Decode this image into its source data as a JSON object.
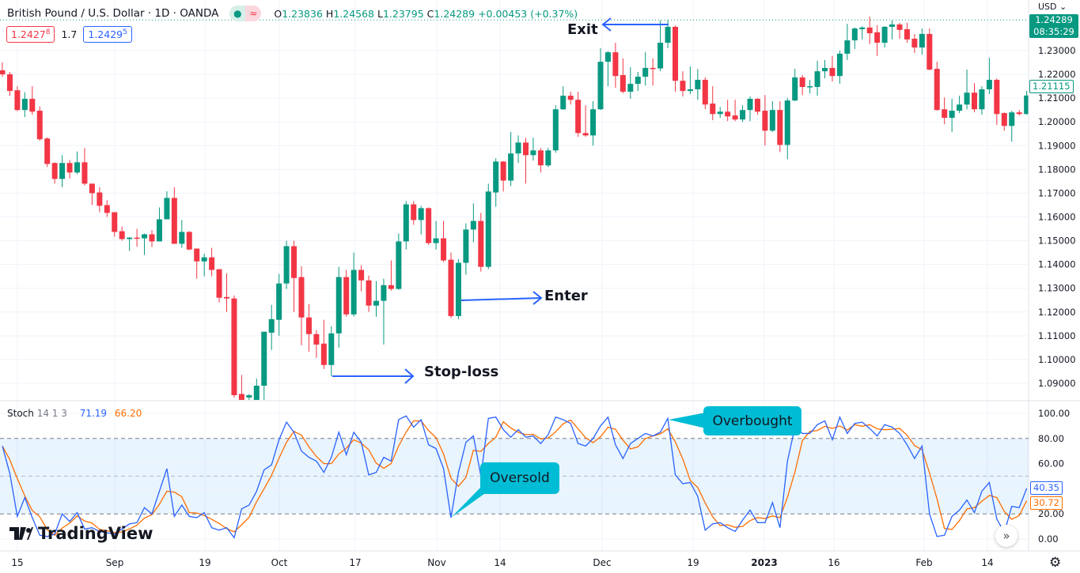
{
  "header": {
    "title": "British Pound / U.S. Dollar · 1D · OANDA",
    "badge_market_icon": "dot-icon",
    "badge_replay_icon": "approx-icon",
    "ohlc": {
      "o_label": "O",
      "o": "1.23836",
      "h_label": "H",
      "h": "1.24568",
      "l_label": "L",
      "l": "1.23795",
      "c_label": "C",
      "c": "1.24289",
      "change": "+0.00453 (+0.37%)"
    }
  },
  "quotes": {
    "sell": "1.2427",
    "sell_sup": "8",
    "spread": "1.7",
    "buy": "1.2429",
    "buy_sup": "5"
  },
  "price_axis": {
    "currency": "USD",
    "ticks": [
      "1.23000",
      "1.22000",
      "1.21000",
      "1.20000",
      "1.19000",
      "1.18000",
      "1.17000",
      "1.16000",
      "1.15000",
      "1.14000",
      "1.13000",
      "1.12000",
      "1.11000",
      "1.10000",
      "1.09000"
    ],
    "last_price_tag": "1.24289",
    "countdown": "08:35:29",
    "marker_tag": "1.21115"
  },
  "stoch": {
    "label": "Stoch",
    "params": "14 1 3",
    "k_value": "71.19",
    "d_value": "66.20",
    "ticks": [
      "100.00",
      "80.00",
      "60.00",
      "20.00",
      "0.00"
    ],
    "k_tag": "40.35",
    "d_tag": "30.72"
  },
  "time_axis": [
    "15",
    "Sep",
    "19",
    "Oct",
    "17",
    "Nov",
    "14",
    "Dec",
    "19",
    "2023",
    "16",
    "Feb",
    "14"
  ],
  "annotations": {
    "exit": "Exit",
    "enter": "Enter",
    "stop_loss": "Stop-loss",
    "overbought": "Overbought",
    "oversold": "Oversold"
  },
  "branding": "TradingView",
  "colors": {
    "up": "#089981",
    "down": "#f23645",
    "k": "#2962ff",
    "d": "#ff6d00",
    "callout": "#00bcd4",
    "arrow": "#2962ff"
  },
  "chart_data": {
    "type": "candlestick",
    "symbol": "GBPUSD",
    "timeframe": "1D",
    "ylim": [
      1.0835,
      1.2475
    ],
    "candles_ohlc": [
      [
        1.2217,
        1.225,
        1.219,
        1.22
      ],
      [
        1.22,
        1.221,
        1.211,
        1.213
      ],
      [
        1.2133,
        1.215,
        1.2045,
        1.205
      ],
      [
        1.205,
        1.2125,
        1.202,
        1.2097
      ],
      [
        1.2097,
        1.215,
        1.203,
        1.2043
      ],
      [
        1.2047,
        1.2065,
        1.192,
        1.1927
      ],
      [
        1.193,
        1.1935,
        1.181,
        1.1823
      ],
      [
        1.1827,
        1.183,
        1.174,
        1.176
      ],
      [
        1.176,
        1.186,
        1.1725,
        1.1827
      ],
      [
        1.1827,
        1.184,
        1.1763,
        1.1787
      ],
      [
        1.1787,
        1.1875,
        1.178,
        1.183
      ],
      [
        1.183,
        1.189,
        1.1733,
        1.174
      ],
      [
        1.174,
        1.174,
        1.165,
        1.17
      ],
      [
        1.1703,
        1.1725,
        1.162,
        1.1647
      ],
      [
        1.165,
        1.167,
        1.16,
        1.1617
      ],
      [
        1.162,
        1.162,
        1.1517,
        1.1537
      ],
      [
        1.154,
        1.156,
        1.15,
        1.1507
      ],
      [
        1.1507,
        1.1515,
        1.1457,
        1.1513
      ],
      [
        1.1513,
        1.155,
        1.1475,
        1.151
      ],
      [
        1.151,
        1.153,
        1.144,
        1.1527
      ],
      [
        1.1527,
        1.1545,
        1.1473,
        1.1497
      ],
      [
        1.1497,
        1.164,
        1.1497,
        1.159
      ],
      [
        1.159,
        1.1708,
        1.159,
        1.168
      ],
      [
        1.168,
        1.1725,
        1.1487,
        1.1487
      ],
      [
        1.1487,
        1.1587,
        1.147,
        1.1537
      ],
      [
        1.1537,
        1.154,
        1.146,
        1.1463
      ],
      [
        1.1467,
        1.1467,
        1.134,
        1.1413
      ],
      [
        1.1413,
        1.1445,
        1.135,
        1.143
      ],
      [
        1.143,
        1.147,
        1.135,
        1.1377
      ],
      [
        1.138,
        1.138,
        1.124,
        1.126
      ],
      [
        1.1263,
        1.1363,
        1.12,
        1.1257
      ],
      [
        1.1257,
        1.127,
        1.084,
        1.085
      ],
      [
        1.0855,
        1.0935,
        1.035,
        1.083
      ],
      [
        1.084,
        1.0855,
        1.08,
        1.085
      ],
      [
        1.083,
        1.092,
        1.08,
        1.089
      ],
      [
        1.089,
        1.1117,
        1.083,
        1.1117
      ],
      [
        1.1113,
        1.123,
        1.104,
        1.117
      ],
      [
        1.1167,
        1.136,
        1.11,
        1.132
      ],
      [
        1.132,
        1.15,
        1.1297,
        1.1477
      ],
      [
        1.1477,
        1.15,
        1.12,
        1.1343
      ],
      [
        1.1347,
        1.1393,
        1.106,
        1.1177
      ],
      [
        1.1177,
        1.1233,
        1.1033,
        1.1107
      ],
      [
        1.1107,
        1.1123,
        1.1007,
        1.1063
      ],
      [
        1.1067,
        1.1167,
        1.096,
        1.0977
      ],
      [
        1.0977,
        1.114,
        1.093,
        1.111
      ],
      [
        1.111,
        1.139,
        1.105,
        1.1347
      ],
      [
        1.1347,
        1.1377,
        1.118,
        1.119
      ],
      [
        1.119,
        1.145,
        1.118,
        1.1377
      ],
      [
        1.1377,
        1.1397,
        1.1287,
        1.1333
      ],
      [
        1.1333,
        1.1353,
        1.12,
        1.1227
      ],
      [
        1.1227,
        1.133,
        1.118,
        1.1247
      ],
      [
        1.1247,
        1.134,
        1.1063,
        1.1313
      ],
      [
        1.1313,
        1.1417,
        1.129,
        1.1297
      ],
      [
        1.1297,
        1.153,
        1.1293,
        1.1497
      ],
      [
        1.1497,
        1.1667,
        1.1463,
        1.1653
      ],
      [
        1.1653,
        1.1667,
        1.1567,
        1.1587
      ],
      [
        1.1587,
        1.1647,
        1.1527,
        1.1637
      ],
      [
        1.1637,
        1.164,
        1.1483,
        1.149
      ],
      [
        1.149,
        1.1583,
        1.1463,
        1.151
      ],
      [
        1.151,
        1.1583,
        1.141,
        1.1417
      ],
      [
        1.142,
        1.145,
        1.1175,
        1.1183
      ],
      [
        1.1183,
        1.1423,
        1.117,
        1.1407
      ],
      [
        1.1407,
        1.1573,
        1.1357,
        1.1547
      ],
      [
        1.1547,
        1.1657,
        1.1493,
        1.1583
      ],
      [
        1.1583,
        1.1617,
        1.137,
        1.139
      ],
      [
        1.139,
        1.174,
        1.138,
        1.1707
      ],
      [
        1.1703,
        1.1847,
        1.1643,
        1.1833
      ],
      [
        1.1833,
        1.1835,
        1.1707,
        1.1753
      ],
      [
        1.1753,
        1.1957,
        1.173,
        1.1867
      ],
      [
        1.1867,
        1.1943,
        1.1827,
        1.1913
      ],
      [
        1.1913,
        1.1933,
        1.174,
        1.186
      ],
      [
        1.186,
        1.1933,
        1.1837,
        1.188
      ],
      [
        1.188,
        1.189,
        1.1787,
        1.1817
      ],
      [
        1.1817,
        1.189,
        1.181,
        1.188
      ],
      [
        1.188,
        1.207,
        1.187,
        1.2053
      ],
      [
        1.2053,
        1.215,
        1.205,
        1.211
      ],
      [
        1.211,
        1.2127,
        1.2073,
        1.2093
      ],
      [
        1.2093,
        1.2127,
        1.1937,
        1.1953
      ],
      [
        1.1953,
        1.207,
        1.1937,
        1.1943
      ],
      [
        1.1943,
        1.2087,
        1.19,
        1.2053
      ],
      [
        1.2053,
        1.231,
        1.205,
        1.2253
      ],
      [
        1.2253,
        1.2297,
        1.215,
        1.2293
      ],
      [
        1.2293,
        1.2333,
        1.2143,
        1.2193
      ],
      [
        1.2197,
        1.2267,
        1.212,
        1.2127
      ],
      [
        1.2127,
        1.223,
        1.2097,
        1.216
      ],
      [
        1.216,
        1.221,
        1.213,
        1.219
      ],
      [
        1.219,
        1.2293,
        1.2153,
        1.2227
      ],
      [
        1.2227,
        1.2267,
        1.2153,
        1.2223
      ],
      [
        1.2225,
        1.2427,
        1.2213,
        1.2333
      ],
      [
        1.2333,
        1.243,
        1.231,
        1.24
      ],
      [
        1.24,
        1.2405,
        1.2127,
        1.2173
      ],
      [
        1.2173,
        1.2213,
        1.2107,
        1.213
      ],
      [
        1.213,
        1.2233,
        1.2117,
        1.2137
      ],
      [
        1.2137,
        1.2223,
        1.2093,
        1.2177
      ],
      [
        1.2177,
        1.2187,
        1.2053,
        1.2073
      ],
      [
        1.2077,
        1.215,
        1.2007,
        1.2033
      ],
      [
        1.2033,
        1.2063,
        1.2017,
        1.2043
      ],
      [
        1.2043,
        1.2093,
        1.2003,
        1.2023
      ],
      [
        1.2027,
        1.2093,
        1.2003,
        1.201
      ],
      [
        1.201,
        1.207,
        1.2,
        1.205
      ],
      [
        1.205,
        1.2107,
        1.2003,
        1.2097
      ],
      [
        1.2097,
        1.21,
        1.203,
        1.2043
      ],
      [
        1.2047,
        1.2113,
        1.19,
        1.1963
      ],
      [
        1.1963,
        1.2087,
        1.1957,
        1.205
      ],
      [
        1.205,
        1.2087,
        1.1873,
        1.1903
      ],
      [
        1.1903,
        1.21,
        1.1843,
        1.209
      ],
      [
        1.209,
        1.2223,
        1.2087,
        1.2187
      ],
      [
        1.2187,
        1.2197,
        1.2113,
        1.2147
      ],
      [
        1.2147,
        1.2177,
        1.212,
        1.215
      ],
      [
        1.2147,
        1.2257,
        1.211,
        1.2213
      ],
      [
        1.2213,
        1.226,
        1.2183,
        1.2227
      ],
      [
        1.2227,
        1.2277,
        1.217,
        1.2193
      ],
      [
        1.2193,
        1.23,
        1.216,
        1.2287
      ],
      [
        1.2287,
        1.2413,
        1.226,
        1.2343
      ],
      [
        1.2343,
        1.2397,
        1.2307,
        1.2393
      ],
      [
        1.239,
        1.2403,
        1.2347,
        1.2397
      ],
      [
        1.2397,
        1.2443,
        1.2327,
        1.2373
      ],
      [
        1.2377,
        1.2407,
        1.2277,
        1.2333
      ],
      [
        1.2333,
        1.2403,
        1.2313,
        1.24
      ],
      [
        1.24,
        1.2427,
        1.2347,
        1.241
      ],
      [
        1.241,
        1.2417,
        1.235,
        1.2387
      ],
      [
        1.239,
        1.2417,
        1.2333,
        1.2347
      ],
      [
        1.235,
        1.237,
        1.229,
        1.2313
      ],
      [
        1.2313,
        1.2393,
        1.2283,
        1.237
      ],
      [
        1.237,
        1.2393,
        1.2217,
        1.222
      ],
      [
        1.2223,
        1.2253,
        1.2047,
        1.205
      ],
      [
        1.2053,
        1.2103,
        1.199,
        1.2017
      ],
      [
        1.2017,
        1.2097,
        1.1957,
        1.2047
      ],
      [
        1.2047,
        1.211,
        1.2037,
        1.2073
      ],
      [
        1.2073,
        1.222,
        1.2053,
        1.2123
      ],
      [
        1.2123,
        1.2163,
        1.204,
        1.2053
      ],
      [
        1.2053,
        1.215,
        1.203,
        1.2137
      ],
      [
        1.2137,
        1.227,
        1.2117,
        1.2177
      ],
      [
        1.2177,
        1.2183,
        1.1987,
        1.2033
      ],
      [
        1.2037,
        1.204,
        1.1963,
        1.1983
      ],
      [
        1.1983,
        1.2047,
        1.1917,
        1.204
      ],
      [
        1.204,
        1.205,
        1.2027,
        1.2033
      ],
      [
        1.2033,
        1.213,
        1.203,
        1.2111
      ]
    ],
    "stoch_k": [
      74,
      52,
      18,
      33,
      17,
      3,
      2,
      4,
      20,
      14,
      21,
      8,
      9,
      6,
      5,
      4,
      8,
      12,
      13,
      25,
      20,
      38,
      56,
      18,
      27,
      18,
      17,
      21,
      9,
      7,
      9,
      1,
      24,
      27,
      38,
      55,
      59,
      79,
      93,
      85,
      70,
      65,
      62,
      53,
      65,
      85,
      67,
      85,
      77,
      51,
      53,
      65,
      62,
      95,
      98,
      89,
      95,
      75,
      72,
      56,
      17,
      53,
      77,
      82,
      50,
      96,
      97,
      87,
      81,
      87,
      81,
      82,
      76,
      83,
      97,
      95,
      92,
      76,
      74,
      80,
      90,
      97,
      75,
      64,
      76,
      80,
      84,
      82,
      85,
      96,
      51,
      44,
      45,
      34,
      7,
      12,
      13,
      9,
      6,
      15,
      23,
      13,
      13,
      29,
      9,
      62,
      89,
      84,
      84,
      91,
      94,
      79,
      97,
      84,
      92,
      93,
      88,
      82,
      91,
      89,
      84,
      75,
      64,
      74,
      20,
      2,
      3,
      18,
      23,
      31,
      21,
      38,
      45,
      16,
      5,
      26,
      25,
      40.35
    ],
    "stoch_d_smoothing": 3,
    "stoch_levels": {
      "upper": 80,
      "middle": 50,
      "lower": 20
    },
    "stoch_ylim": [
      0,
      100
    ]
  }
}
